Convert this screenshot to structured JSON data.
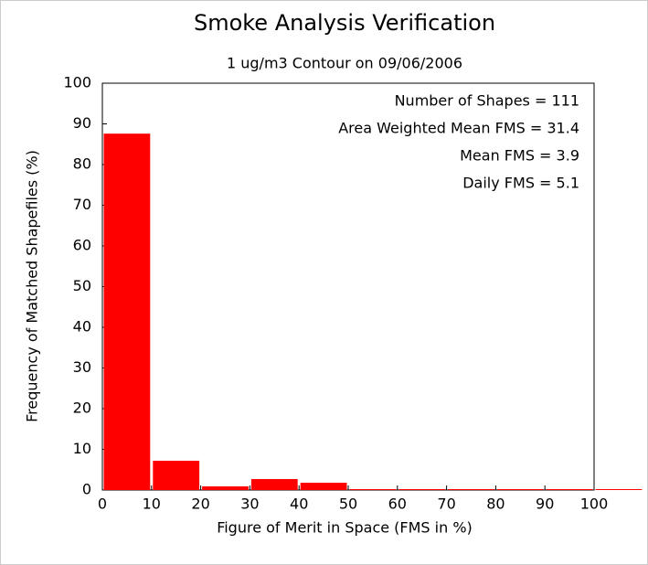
{
  "chart_data": {
    "type": "histogram",
    "title": "Smoke Analysis Verification",
    "subtitle": "1 ug/m3 Contour on 09/06/2006",
    "x_label": "Figure of Merit in Space (FMS in %)",
    "y_label": "Frequency of Matched Shapefiles (%)",
    "annotations": [
      "Number of Shapes = 111",
      "Area Weighted Mean FMS = 31.4",
      "Mean FMS = 3.9",
      "Daily FMS = 5.1"
    ],
    "bins": [
      0,
      10,
      20,
      30,
      40,
      50,
      60,
      70,
      80,
      90,
      100,
      110
    ],
    "values": [
      87.6,
      7.2,
      0.9,
      2.7,
      1.8,
      0,
      0,
      0,
      0,
      0,
      0
    ],
    "color": "#ff0000",
    "xlim": [
      0,
      100
    ],
    "ylim": [
      0,
      100
    ],
    "xticks": [
      0,
      10,
      20,
      30,
      40,
      50,
      60,
      70,
      80,
      90,
      100
    ],
    "yticks": [
      0,
      10,
      20,
      30,
      40,
      50,
      60,
      70,
      80,
      90,
      100
    ]
  }
}
